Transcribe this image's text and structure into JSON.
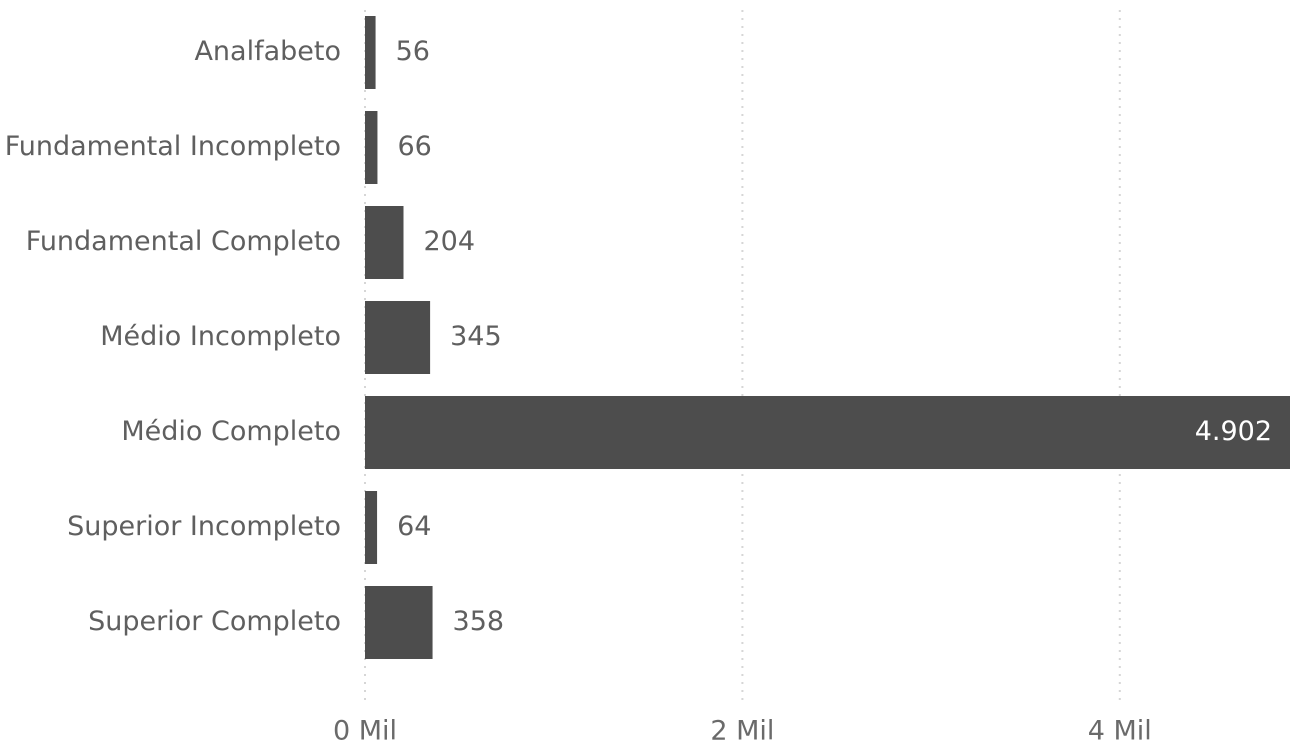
{
  "chart_data": {
    "type": "bar",
    "orientation": "horizontal",
    "categories": [
      "Analfabeto",
      "Fundamental Incompleto",
      "Fundamental Completo",
      "Médio Incompleto",
      "Médio Completo",
      "Superior Incompleto",
      "Superior Completo"
    ],
    "values": [
      56,
      66,
      204,
      345,
      4902,
      64,
      358
    ],
    "value_labels": [
      "56",
      "66",
      "204",
      "345",
      "4.902",
      "64",
      "358"
    ],
    "xlim": [
      0,
      4902
    ],
    "x_ticks": [
      {
        "value": 0,
        "label": "0 Mil"
      },
      {
        "value": 2000,
        "label": "2 Mil"
      },
      {
        "value": 4000,
        "label": "4 Mil"
      }
    ],
    "bar_color": "#4d4d4d",
    "grid": true,
    "legend": false
  }
}
